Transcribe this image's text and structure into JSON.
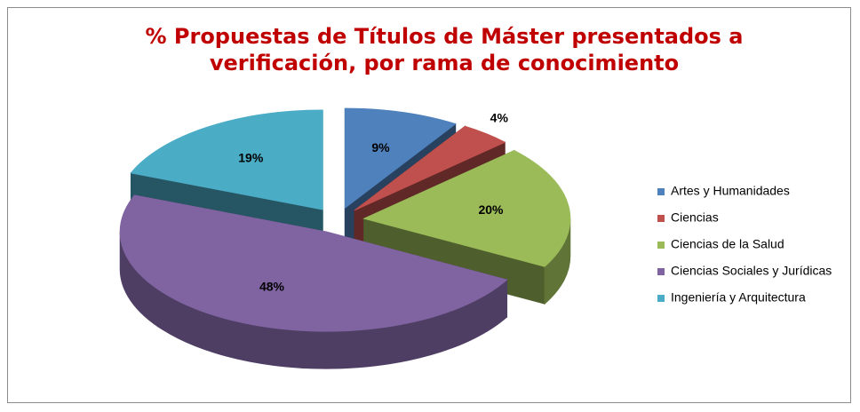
{
  "chart_data": {
    "type": "pie3d",
    "title": "% Propuestas de Títulos de Máster presentados a verificación, por rama de conocimiento",
    "categories": [
      "Artes y Humanidades",
      "Ciencias",
      "Ciencias de la Salud",
      "Ciencias Sociales y Jurídicas",
      "Ingeniería y Arquitectura"
    ],
    "values": [
      9,
      4,
      20,
      48,
      19
    ],
    "value_labels": [
      "9%",
      "4%",
      "20%",
      "48%",
      "19%"
    ],
    "colors": [
      "#4f81bd",
      "#c0504d",
      "#9bbb59",
      "#8064a2",
      "#4bacc6"
    ],
    "legend": "right"
  }
}
